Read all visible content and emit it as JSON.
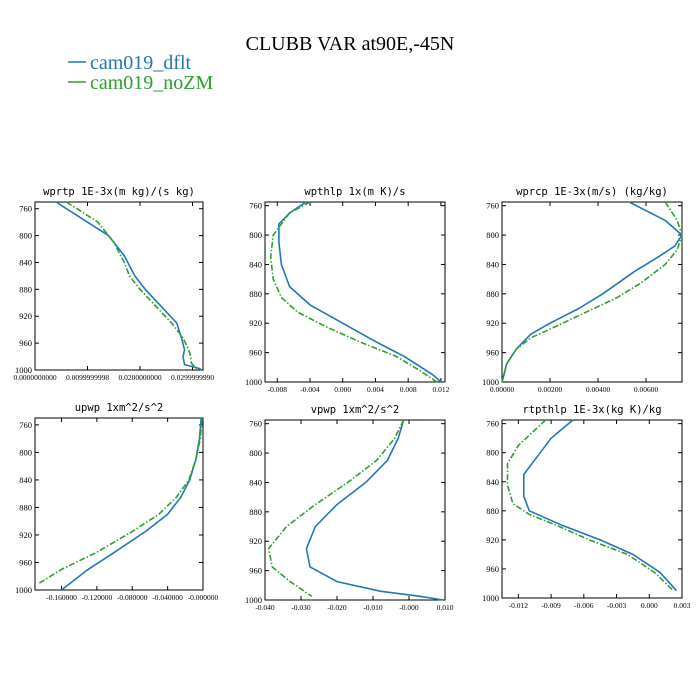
{
  "title": "CLUBB VAR at90E,-45N",
  "legend": {
    "placement": "top-left",
    "entries": [
      {
        "label": "cam019_dflt",
        "color": "#1f77b4"
      },
      {
        "label": "cam019_noZM",
        "color": "#2ca02c"
      }
    ]
  },
  "chart_data": [
    {
      "type": "line",
      "title": "wprtp   1E-3x(m kg)/(s kg)",
      "xlim": [
        0.0,
        0.032
      ],
      "ylim": [
        1000,
        750
      ],
      "y_inverted": true,
      "xticks": [
        0.0,
        0.01,
        0.02,
        0.03
      ],
      "xtick_labels": [
        "0.0000000000",
        "0.0099999998",
        "0.0200000000",
        "0.0299999990"
      ],
      "yticks": [
        760,
        800,
        840,
        880,
        920,
        960,
        1000
      ],
      "series": [
        {
          "color": "#1f77b4",
          "dashed": false,
          "x": [
            0.004,
            0.01,
            0.014,
            0.017,
            0.019,
            0.021,
            0.024,
            0.027,
            0.028,
            0.0285,
            0.0282,
            0.0285,
            0.031,
            0.0318
          ],
          "y": [
            750,
            780,
            800,
            830,
            860,
            880,
            905,
            930,
            955,
            970,
            980,
            992,
            997,
            1000
          ]
        },
        {
          "color": "#2ca02c",
          "dashed": true,
          "x": [
            0.006,
            0.012,
            0.015,
            0.017,
            0.018,
            0.02,
            0.023,
            0.026,
            0.028,
            0.029,
            0.0295,
            0.0298,
            0.031
          ],
          "y": [
            750,
            780,
            810,
            840,
            860,
            880,
            905,
            930,
            950,
            965,
            975,
            990,
            1000
          ]
        }
      ]
    },
    {
      "type": "line",
      "title": "wpthlp   1x(m K)/s",
      "xlim": [
        -0.0095,
        0.0125
      ],
      "ylim": [
        1000,
        755
      ],
      "y_inverted": true,
      "xticks": [
        -0.008,
        -0.004,
        0.0,
        0.004,
        0.008,
        0.012
      ],
      "xtick_labels": [
        "-0.008",
        "-0.004",
        "0.000",
        "0.004",
        "0.008",
        "0.012"
      ],
      "yticks": [
        760,
        800,
        840,
        880,
        920,
        960,
        1000
      ],
      "series": [
        {
          "color": "#1f77b4",
          "dashed": false,
          "x": [
            -0.0045,
            -0.0065,
            -0.0078,
            -0.0078,
            -0.0075,
            -0.0065,
            -0.004,
            0.0,
            0.004,
            0.0075,
            0.011,
            0.012
          ],
          "y": [
            755,
            770,
            785,
            810,
            840,
            870,
            895,
            920,
            945,
            965,
            990,
            1000
          ]
        },
        {
          "color": "#2ca02c",
          "dashed": true,
          "x": [
            -0.004,
            -0.0065,
            -0.0085,
            -0.0088,
            -0.0085,
            -0.0075,
            -0.0055,
            -0.002,
            0.002,
            0.0065,
            0.0095,
            0.0115
          ],
          "y": [
            755,
            770,
            800,
            830,
            860,
            885,
            905,
            925,
            945,
            965,
            985,
            1000
          ]
        }
      ]
    },
    {
      "type": "line",
      "title": "wprcp   1E-3x(m/s) (kg/kg)",
      "xlim": [
        0.0,
        0.0075
      ],
      "ylim": [
        1000,
        755
      ],
      "y_inverted": true,
      "xticks": [
        0.0,
        0.002,
        0.004,
        0.006
      ],
      "xtick_labels": [
        "0.00000",
        "0.00200",
        "0.00400",
        "0.00600"
      ],
      "yticks": [
        760,
        800,
        840,
        880,
        920,
        960,
        1000
      ],
      "series": [
        {
          "color": "#1f77b4",
          "dashed": false,
          "x": [
            0.0053,
            0.0068,
            0.0075,
            0.0072,
            0.0065,
            0.0055,
            0.0042,
            0.0032,
            0.002,
            0.0012,
            0.0006,
            0.0002,
            0.0
          ],
          "y": [
            755,
            780,
            800,
            815,
            830,
            850,
            880,
            900,
            920,
            935,
            955,
            975,
            1000
          ]
        },
        {
          "color": "#2ca02c",
          "dashed": true,
          "x": [
            0.0068,
            0.0073,
            0.0075,
            0.0073,
            0.0068,
            0.0058,
            0.0048,
            0.0035,
            0.0022,
            0.0012,
            0.0006,
            0.0002,
            0.0
          ],
          "y": [
            755,
            780,
            800,
            820,
            840,
            865,
            885,
            905,
            925,
            940,
            955,
            975,
            1000
          ]
        }
      ]
    },
    {
      "type": "line",
      "title": "upwp   1xm^2/s^2",
      "xlim": [
        -0.19,
        0.0
      ],
      "ylim": [
        1000,
        750
      ],
      "y_inverted": true,
      "xticks": [
        -0.16,
        -0.12,
        -0.08,
        -0.04,
        0.0
      ],
      "xtick_labels": [
        "-0.160000",
        "-0.120000",
        "-0.080000",
        "-0.040000",
        "-0.000000"
      ],
      "yticks": [
        760,
        800,
        840,
        880,
        920,
        960,
        1000
      ],
      "series": [
        {
          "color": "#1f77b4",
          "dashed": false,
          "x": [
            -0.002,
            -0.004,
            -0.008,
            -0.015,
            -0.025,
            -0.04,
            -0.065,
            -0.1,
            -0.13,
            -0.16
          ],
          "y": [
            750,
            780,
            810,
            840,
            865,
            890,
            915,
            945,
            970,
            1000
          ]
        },
        {
          "color": "#2ca02c",
          "dashed": true,
          "x": [
            -0.001,
            -0.003,
            -0.008,
            -0.016,
            -0.03,
            -0.05,
            -0.08,
            -0.12,
            -0.16,
            -0.185
          ],
          "y": [
            750,
            780,
            810,
            840,
            865,
            890,
            915,
            945,
            970,
            990
          ]
        }
      ]
    },
    {
      "type": "line",
      "title": "vpwp   1xm^2/s^2",
      "xlim": [
        -0.04,
        0.01
      ],
      "ylim": [
        1000,
        755
      ],
      "y_inverted": true,
      "xticks": [
        -0.04,
        -0.03,
        -0.02,
        -0.01,
        0.0,
        0.01
      ],
      "xtick_labels": [
        "-0.040",
        "-0.030",
        "-0.020",
        "-0.010",
        "-0.000",
        "0.010"
      ],
      "yticks": [
        760,
        800,
        840,
        880,
        920,
        960,
        1000
      ],
      "series": [
        {
          "color": "#1f77b4",
          "dashed": false,
          "x": [
            -0.0015,
            -0.003,
            -0.006,
            -0.012,
            -0.02,
            -0.026,
            -0.0285,
            -0.0275,
            -0.02,
            -0.008,
            0.003,
            0.0095
          ],
          "y": [
            755,
            780,
            810,
            840,
            870,
            900,
            930,
            955,
            975,
            988,
            995,
            1000
          ]
        },
        {
          "color": "#2ca02c",
          "dashed": true,
          "x": [
            -0.0015,
            -0.004,
            -0.009,
            -0.017,
            -0.026,
            -0.034,
            -0.039,
            -0.038,
            -0.033,
            -0.027
          ],
          "y": [
            755,
            780,
            810,
            840,
            870,
            900,
            930,
            955,
            975,
            995
          ]
        }
      ]
    },
    {
      "type": "line",
      "title": "rtpthlp   1E-3x(kg K)/kg",
      "xlim": [
        -0.0135,
        0.003
      ],
      "ylim": [
        1000,
        755
      ],
      "y_inverted": true,
      "xticks": [
        -0.012,
        -0.009,
        -0.006,
        -0.003,
        0.0,
        0.003
      ],
      "xtick_labels": [
        "-0.012",
        "-0.009",
        "-0.006",
        "-0.003",
        "0.000",
        "0.003"
      ],
      "yticks": [
        760,
        800,
        840,
        880,
        920,
        960,
        1000
      ],
      "series": [
        {
          "color": "#1f77b4",
          "dashed": false,
          "x": [
            -0.007,
            -0.009,
            -0.01,
            -0.0115,
            -0.0115,
            -0.011,
            -0.008,
            -0.0045,
            -0.0015,
            0.001,
            0.0025
          ],
          "y": [
            755,
            780,
            800,
            830,
            860,
            880,
            900,
            920,
            940,
            965,
            990
          ]
        },
        {
          "color": "#2ca02c",
          "dashed": true,
          "x": [
            -0.0095,
            -0.012,
            -0.013,
            -0.013,
            -0.0125,
            -0.011,
            -0.0085,
            -0.0055,
            -0.002,
            0.0005,
            0.0022
          ],
          "y": [
            755,
            790,
            815,
            845,
            870,
            885,
            900,
            920,
            940,
            965,
            990
          ]
        }
      ]
    }
  ]
}
